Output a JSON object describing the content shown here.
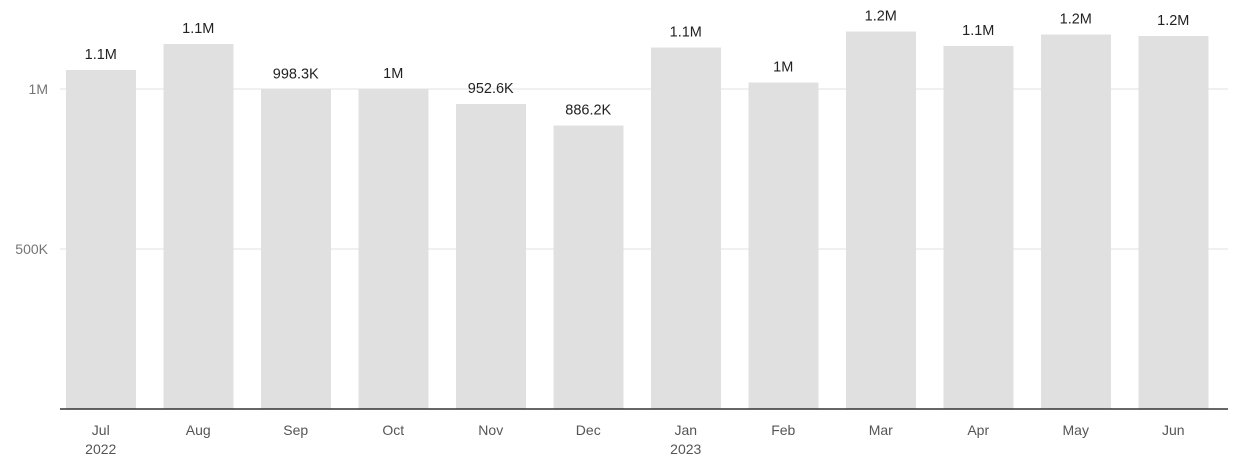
{
  "chart_data": {
    "type": "bar",
    "title": "",
    "xlabel": "",
    "ylabel": "",
    "ylim": [
      0,
      1250000
    ],
    "grid": true,
    "legend": "none",
    "bar_color": "#e0e0e0",
    "y_ticks": [
      {
        "value": 500000,
        "label": "500K"
      },
      {
        "value": 1000000,
        "label": "1M"
      }
    ],
    "categories": [
      {
        "label": "Jul",
        "sublabel": "2022"
      },
      {
        "label": "Aug",
        "sublabel": ""
      },
      {
        "label": "Sep",
        "sublabel": ""
      },
      {
        "label": "Oct",
        "sublabel": ""
      },
      {
        "label": "Nov",
        "sublabel": ""
      },
      {
        "label": "Dec",
        "sublabel": ""
      },
      {
        "label": "Jan",
        "sublabel": "2023"
      },
      {
        "label": "Feb",
        "sublabel": ""
      },
      {
        "label": "Mar",
        "sublabel": ""
      },
      {
        "label": "Apr",
        "sublabel": ""
      },
      {
        "label": "May",
        "sublabel": ""
      },
      {
        "label": "Jun",
        "sublabel": ""
      }
    ],
    "values": [
      1060000,
      1140000,
      998300,
      1000000,
      952600,
      886200,
      1130000,
      1020000,
      1180000,
      1135000,
      1170000,
      1166000
    ],
    "data_labels": [
      "1.1M",
      "1.1M",
      "998.3K",
      "1M",
      "952.6K",
      "886.2K",
      "1.1M",
      "1M",
      "1.2M",
      "1.1M",
      "1.2M",
      "1.2M"
    ]
  }
}
